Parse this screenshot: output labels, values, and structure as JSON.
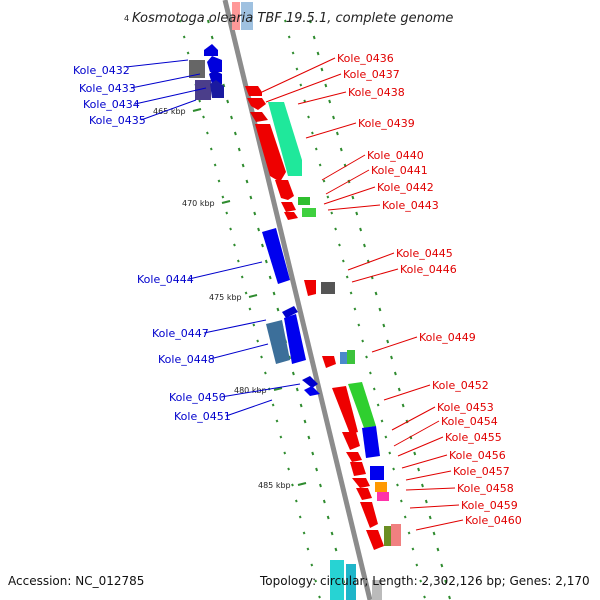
{
  "title": "Kosmotoga olearia TBF 19.5.1, complete genome",
  "title_prefix": "4",
  "footer": {
    "accession": "Accession: NC_012785",
    "summary": "Topology: circular; Length: 2,302,126 bp; Genes: 2,170"
  },
  "colors": {
    "backbone": "#8c8c8c",
    "tick": "#2e8b2e",
    "forward_label": "#e00000",
    "reverse_label": "#0000cc"
  },
  "kbp_marks": [
    {
      "label": "465 kbp",
      "pos": 465
    },
    {
      "label": "470 kbp",
      "pos": 470
    },
    {
      "label": "475 kbp",
      "pos": 475
    },
    {
      "label": "480 kbp",
      "pos": 480
    },
    {
      "label": "485 kbp",
      "pos": 485
    }
  ],
  "genes_reverse": [
    {
      "id": "Kole_0432"
    },
    {
      "id": "Kole_0433"
    },
    {
      "id": "Kole_0434"
    },
    {
      "id": "Kole_0435"
    },
    {
      "id": "Kole_0444"
    },
    {
      "id": "Kole_0447"
    },
    {
      "id": "Kole_0448"
    },
    {
      "id": "Kole_0450"
    },
    {
      "id": "Kole_0451"
    }
  ],
  "genes_forward": [
    {
      "id": "Kole_0436"
    },
    {
      "id": "Kole_0437"
    },
    {
      "id": "Kole_0438"
    },
    {
      "id": "Kole_0439"
    },
    {
      "id": "Kole_0440"
    },
    {
      "id": "Kole_0441"
    },
    {
      "id": "Kole_0442"
    },
    {
      "id": "Kole_0443"
    },
    {
      "id": "Kole_0445"
    },
    {
      "id": "Kole_0446"
    },
    {
      "id": "Kole_0449"
    },
    {
      "id": "Kole_0452"
    },
    {
      "id": "Kole_0453"
    },
    {
      "id": "Kole_0454"
    },
    {
      "id": "Kole_0455"
    },
    {
      "id": "Kole_0456"
    },
    {
      "id": "Kole_0457"
    },
    {
      "id": "Kole_0458"
    },
    {
      "id": "Kole_0459"
    },
    {
      "id": "Kole_0460"
    }
  ]
}
